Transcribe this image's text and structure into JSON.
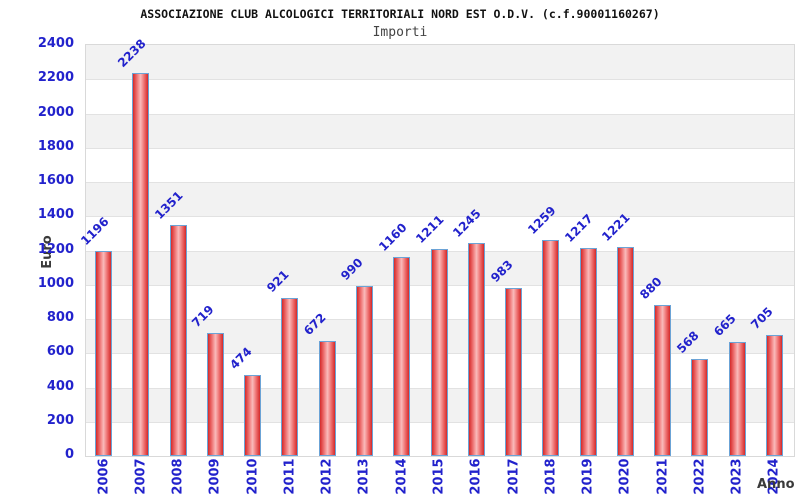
{
  "chart_data": {
    "type": "bar",
    "title": "ASSOCIAZIONE CLUB ALCOLOGICI TERRITORIALI NORD EST O.D.V. (c.f.90001160267)",
    "subtitle": "Importi",
    "xlabel": "Anno",
    "ylabel": "Euro",
    "categories": [
      "2006",
      "2007",
      "2008",
      "2009",
      "2010",
      "2011",
      "2012",
      "2013",
      "2014",
      "2015",
      "2016",
      "2017",
      "2018",
      "2019",
      "2020",
      "2021",
      "2022",
      "2023",
      "2024"
    ],
    "values": [
      1196,
      2238,
      1351,
      719,
      474,
      921,
      672,
      990,
      1160,
      1211,
      1245,
      983,
      1259,
      1217,
      1221,
      880,
      568,
      665,
      705
    ],
    "ylim": [
      0,
      2400
    ],
    "ytick_step": 200,
    "grid": "horizontal-bands",
    "legend": "none",
    "bar_labels_shown": true,
    "colors": {
      "bar_fill_dark": "#d42a2a",
      "bar_fill_light": "#f8bcbc",
      "bar_border": "#6ba3d6",
      "axis_text_blue": "#2222cc",
      "band_gray": "#f2f2f2",
      "grid_line": "#e2e2e2",
      "plot_border": "#d9d9d9",
      "title_text": "#111111",
      "axis_title_text": "#3a3a3a"
    }
  }
}
